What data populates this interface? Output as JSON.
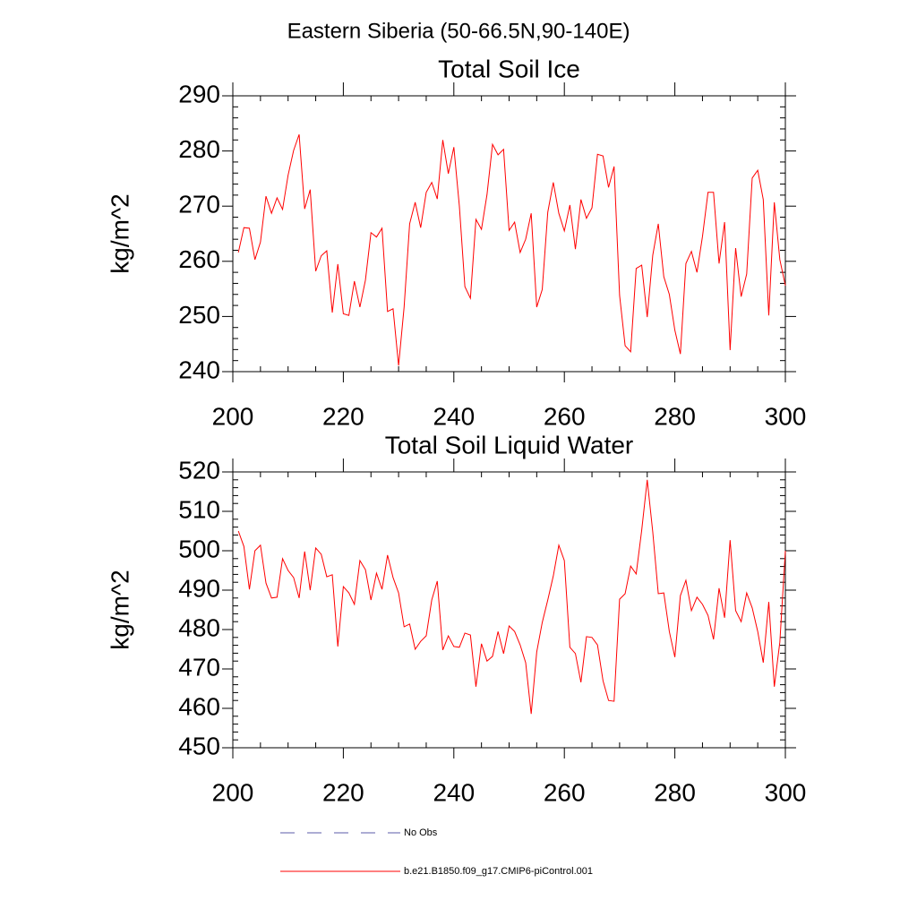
{
  "title": "Eastern Siberia (50-66.5N,90-140E)",
  "legend": [
    {
      "name": "No Obs",
      "color": "#5b5ba8",
      "dash": true
    },
    {
      "name": "b.e21.B1850.f09_g17.CMIP6-piControl.001",
      "color": "#ff0000",
      "dash": false
    }
  ],
  "chart_data": [
    {
      "type": "line",
      "title": "Total Soil Ice",
      "ylabel": "kg/m^2",
      "xlim": [
        200,
        300
      ],
      "xticks": [
        200,
        220,
        240,
        260,
        280,
        300
      ],
      "xminorticks": [
        205,
        210,
        215,
        225,
        230,
        235,
        245,
        250,
        255,
        265,
        270,
        275,
        285,
        290,
        295
      ],
      "ylim": [
        240,
        290
      ],
      "yticks": [
        240,
        250,
        260,
        270,
        280,
        290
      ],
      "yminorticks": [
        242,
        244,
        246,
        248,
        252,
        254,
        256,
        258,
        262,
        264,
        266,
        268,
        272,
        274,
        276,
        278,
        282,
        284,
        286,
        288
      ],
      "x": [
        201,
        202,
        203,
        204,
        205,
        206,
        207,
        208,
        209,
        210,
        211,
        212,
        213,
        214,
        215,
        216,
        217,
        218,
        219,
        220,
        221,
        222,
        223,
        224,
        225,
        226,
        227,
        228,
        229,
        230,
        231,
        232,
        233,
        234,
        235,
        236,
        237,
        238,
        239,
        240,
        241,
        242,
        243,
        244,
        245,
        246,
        247,
        248,
        249,
        250,
        251,
        252,
        253,
        254,
        255,
        256,
        257,
        258,
        259,
        260,
        261,
        262,
        263,
        264,
        265,
        266,
        267,
        268,
        269,
        270,
        271,
        272,
        273,
        274,
        275,
        276,
        277,
        278,
        279,
        280,
        281,
        282,
        283,
        284,
        285,
        286,
        287,
        288,
        289,
        290,
        291,
        292,
        293,
        294,
        295,
        296,
        297,
        298,
        299,
        300
      ],
      "series": [
        {
          "color": "#ff0000",
          "values": [
            261.6,
            266.1,
            266,
            260.3,
            263.5,
            271.8,
            268.7,
            271.5,
            269.4,
            275.6,
            280.1,
            283,
            269.5,
            273,
            258.2,
            261,
            261.9,
            250.7,
            259.5,
            250.5,
            250.2,
            256.4,
            251.7,
            256.6,
            265.2,
            264.4,
            266,
            250.9,
            251.4,
            241.1,
            251.7,
            266.8,
            270.7,
            266.1,
            272.5,
            274.3,
            271.3,
            282,
            275.9,
            280.7,
            270,
            255.4,
            253.3,
            267.6,
            265.8,
            272.1,
            281.2,
            279.3,
            280.3,
            265.6,
            267.1,
            261.6,
            264,
            268.7,
            251.7,
            254.9,
            268.9,
            274.3,
            268.7,
            265.5,
            270.2,
            262.2,
            271.2,
            267.8,
            269.7,
            279.4,
            279.1,
            273.4,
            277.2,
            253.8,
            244.7,
            243.6,
            258.7,
            259.3,
            249.9,
            261.1,
            266.8,
            257.2,
            254,
            247.5,
            243.2,
            259.6,
            261.8,
            258,
            264.5,
            272.5,
            272.5,
            259.6,
            267.1,
            243.9,
            262.4,
            253.6,
            257.7,
            275.1,
            276.5,
            271.2,
            250.2,
            270.7,
            260.3,
            255.6
          ]
        }
      ]
    },
    {
      "type": "line",
      "title": "Total Soil Liquid Water",
      "ylabel": "kg/m^2",
      "xlim": [
        200,
        300
      ],
      "xticks": [
        200,
        220,
        240,
        260,
        280,
        300
      ],
      "xminorticks": [
        205,
        210,
        215,
        225,
        230,
        235,
        245,
        250,
        255,
        265,
        270,
        275,
        285,
        290,
        295
      ],
      "ylim": [
        450,
        520
      ],
      "yticks": [
        450,
        460,
        470,
        480,
        490,
        500,
        510,
        520
      ],
      "yminorticks": [
        452,
        454,
        456,
        458,
        462,
        464,
        466,
        468,
        472,
        474,
        476,
        478,
        482,
        484,
        486,
        488,
        492,
        494,
        496,
        498,
        502,
        504,
        506,
        508,
        512,
        514,
        516,
        518
      ],
      "x": [
        201,
        202,
        203,
        204,
        205,
        206,
        207,
        208,
        209,
        210,
        211,
        212,
        213,
        214,
        215,
        216,
        217,
        218,
        219,
        220,
        221,
        222,
        223,
        224,
        225,
        226,
        227,
        228,
        229,
        230,
        231,
        232,
        233,
        234,
        235,
        236,
        237,
        238,
        239,
        240,
        241,
        242,
        243,
        244,
        245,
        246,
        247,
        248,
        249,
        250,
        251,
        252,
        253,
        254,
        255,
        256,
        257,
        258,
        259,
        260,
        261,
        262,
        263,
        264,
        265,
        266,
        267,
        268,
        269,
        270,
        271,
        272,
        273,
        274,
        275,
        276,
        277,
        278,
        279,
        280,
        281,
        282,
        283,
        284,
        285,
        286,
        287,
        288,
        289,
        290,
        291,
        292,
        293,
        294,
        295,
        296,
        297,
        298,
        299,
        300
      ],
      "series": [
        {
          "color": "#ff0000",
          "values": [
            505,
            501.1,
            490.2,
            500,
            501.4,
            491.8,
            488,
            488.2,
            498,
            495,
            493.2,
            488,
            499.8,
            490,
            500.7,
            499.1,
            493.4,
            493.9,
            475.7,
            490.9,
            489.3,
            486.4,
            497.5,
            495.2,
            487.5,
            494.3,
            490.2,
            498.9,
            493.2,
            489.3,
            480.7,
            481.4,
            475,
            477,
            478.4,
            487.5,
            492.3,
            474.8,
            478.4,
            475.7,
            475.5,
            479.1,
            478.6,
            465.5,
            476.4,
            472,
            473.2,
            479.5,
            473.9,
            480.9,
            479.5,
            476.1,
            471.6,
            458.6,
            474.3,
            481.8,
            487.5,
            493.6,
            501.4,
            497.5,
            475.5,
            473.9,
            466.6,
            478.2,
            478,
            476.1,
            467,
            462,
            461.8,
            487.7,
            489.1,
            496.1,
            494.1,
            505.2,
            518,
            504.8,
            489.1,
            489.3,
            479.5,
            473,
            488.6,
            492.5,
            484.8,
            488.2,
            486.4,
            483.6,
            477.5,
            490.5,
            483,
            502.7,
            484.8,
            482,
            489.3,
            485.5,
            479.5,
            471.6,
            487,
            465.5,
            476.8,
            500
          ]
        }
      ]
    }
  ]
}
